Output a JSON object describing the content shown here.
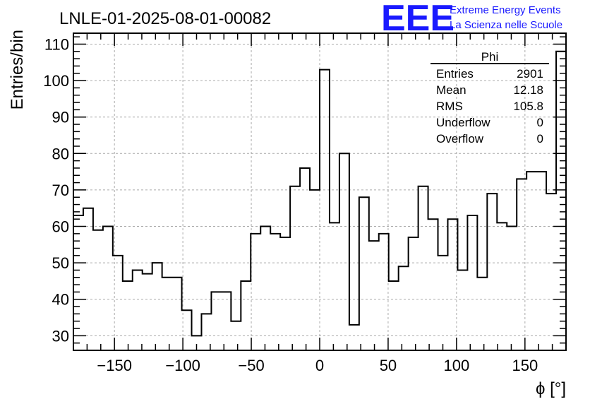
{
  "chart_data": {
    "type": "bar",
    "title": "LNLE-01-2025-08-01-00082",
    "xlabel": "ϕ [°]",
    "ylabel": "Entries/bin",
    "xlim": [
      -180,
      180
    ],
    "ylim": [
      26,
      113
    ],
    "bin_width": 7.2,
    "x_ticks": [
      -150,
      -100,
      -50,
      0,
      50,
      100,
      150
    ],
    "y_ticks": [
      30,
      40,
      50,
      60,
      70,
      80,
      90,
      100,
      110
    ],
    "grid": true,
    "values": [
      63,
      65,
      59,
      60,
      52,
      45,
      48,
      47,
      50,
      46,
      46,
      37,
      30,
      36,
      42,
      42,
      34,
      45,
      58,
      60,
      58,
      57,
      71,
      76,
      70,
      103,
      61,
      80,
      33,
      68,
      56,
      58,
      45,
      49,
      57,
      71,
      62,
      52,
      62,
      48,
      63,
      46,
      69,
      61,
      60,
      73,
      75,
      75,
      69,
      108
    ],
    "stats": {
      "name": "Phi",
      "rows": [
        {
          "label": "Entries",
          "value": "2901"
        },
        {
          "label": "Mean",
          "value": "12.18"
        },
        {
          "label": "RMS",
          "value": "105.8"
        },
        {
          "label": "Underflow",
          "value": "0"
        },
        {
          "label": "Overflow",
          "value": "0"
        }
      ],
      "placement": "top-right"
    }
  },
  "logo": {
    "mark": "EEE",
    "line1": "Extreme Energy Events",
    "line2": "La Scienza nelle Scuole",
    "color": "#1a1aff"
  }
}
